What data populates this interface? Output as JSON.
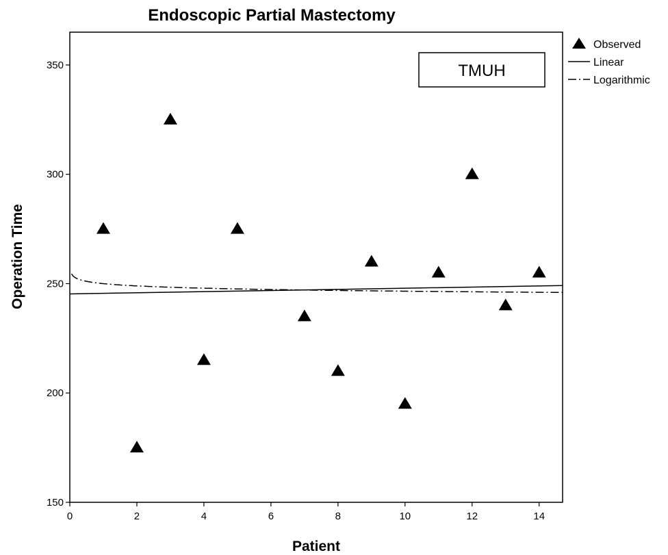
{
  "chart_data": {
    "type": "scatter",
    "title": "Endoscopic Partial Mastectomy",
    "xlabel": "Patient",
    "ylabel": "Operation Time",
    "xlim": [
      0,
      14.7
    ],
    "ylim": [
      150,
      365
    ],
    "xticks": [
      0,
      2,
      4,
      6,
      8,
      10,
      12,
      14
    ],
    "yticks": [
      150,
      200,
      250,
      300,
      350
    ],
    "xtick_labels": [
      "0",
      "2",
      "4",
      "6",
      "8",
      "10",
      "12",
      "14"
    ],
    "ytick_labels": [
      "150",
      "200",
      "250",
      "300",
      "350"
    ],
    "grid": false,
    "legend_position": "right, outside top",
    "annotation": "TMUH",
    "series": [
      {
        "name": "Observed",
        "marker": "triangle",
        "color": "#000000",
        "points": [
          {
            "x": 1,
            "y": 275
          },
          {
            "x": 2,
            "y": 175
          },
          {
            "x": 3,
            "y": 325
          },
          {
            "x": 4,
            "y": 215
          },
          {
            "x": 5,
            "y": 275
          },
          {
            "x": 7,
            "y": 235
          },
          {
            "x": 8,
            "y": 210
          },
          {
            "x": 9,
            "y": 260
          },
          {
            "x": 10,
            "y": 195
          },
          {
            "x": 11,
            "y": 255
          },
          {
            "x": 12,
            "y": 300
          },
          {
            "x": 13,
            "y": 240
          },
          {
            "x": 14,
            "y": 255
          }
        ]
      },
      {
        "name": "Linear",
        "line_style": "solid",
        "color": "#000000",
        "fit": {
          "intercept": 245.3,
          "slope": 0.26
        }
      },
      {
        "name": "Logarithmic",
        "line_style": "dash-dot",
        "color": "#000000",
        "fit": {
          "a": 250.0,
          "b": -1.5
        }
      }
    ]
  }
}
